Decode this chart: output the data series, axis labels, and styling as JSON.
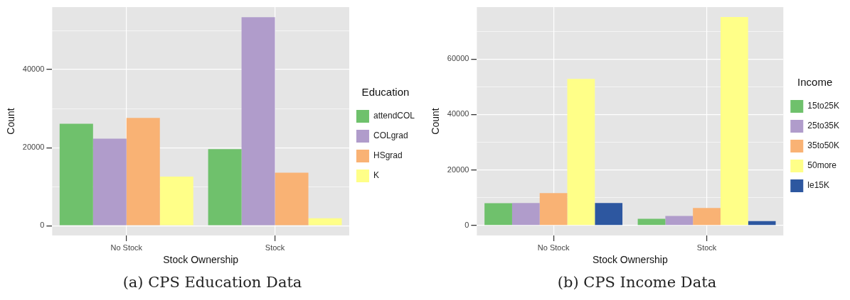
{
  "chart_data": [
    {
      "type": "bar",
      "xlabel": "Stock Ownership",
      "ylabel": "Count",
      "legend_title": "Education",
      "legend": "right",
      "grid": true,
      "categories": [
        "No Stock",
        "Stock"
      ],
      "series": [
        {
          "name": "attendCOL",
          "color": "#6fc16c",
          "values": [
            26100,
            19600
          ]
        },
        {
          "name": "COLgrad",
          "color": "#b09ccb",
          "values": [
            22300,
            53400
          ]
        },
        {
          "name": "HSgrad",
          "color": "#f9b274",
          "values": [
            27600,
            13600
          ]
        },
        {
          "name": "K",
          "color": "#ffff88",
          "values": [
            12600,
            1900
          ]
        }
      ],
      "ylim": [
        -2500,
        56000
      ],
      "yticks": [
        0,
        {
          "value": 10000,
          "label": null
        },
        20000,
        {
          "value": 30000,
          "label": null
        },
        40000,
        {
          "value": 50000,
          "label": null
        }
      ],
      "annotations": [
        "(a) CPS Education Data"
      ]
    },
    {
      "type": "bar",
      "xlabel": "Stock Ownership",
      "ylabel": "Count",
      "legend_title": "Income",
      "legend": "right",
      "grid": true,
      "categories": [
        "No Stock",
        "Stock"
      ],
      "series": [
        {
          "name": "15to25K",
          "color": "#6fc16c",
          "values": [
            8000,
            2400
          ]
        },
        {
          "name": "25to35K",
          "color": "#b09ccb",
          "values": [
            8100,
            3400
          ]
        },
        {
          "name": "35to50K",
          "color": "#f9b274",
          "values": [
            11700,
            6300
          ]
        },
        {
          "name": "50more",
          "color": "#ffff88",
          "values": [
            52800,
            75100
          ]
        },
        {
          "name": "le15K",
          "color": "#2d57a0",
          "values": [
            8100,
            1600
          ]
        }
      ],
      "ylim": [
        -3600,
        78700
      ],
      "yticks": [
        0,
        {
          "value": 10000,
          "label": null
        },
        20000,
        {
          "value": 30000,
          "label": null
        },
        40000,
        {
          "value": 50000,
          "label": null
        },
        60000,
        {
          "value": 70000,
          "label": null
        }
      ],
      "annotations": [
        "(b) CPS Income Data"
      ]
    }
  ]
}
